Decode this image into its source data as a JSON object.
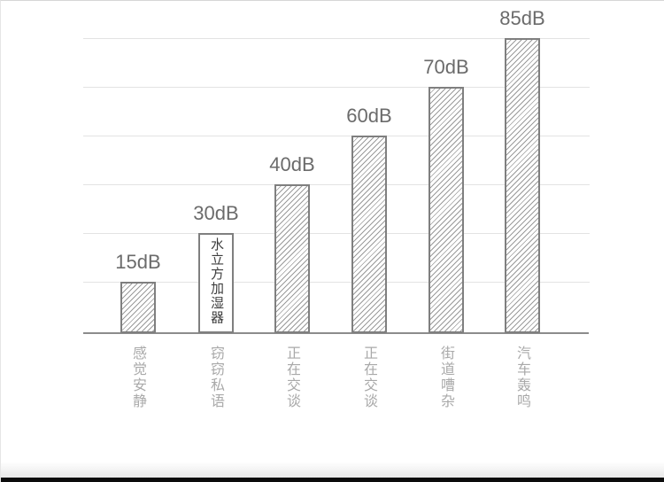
{
  "chart_data": {
    "type": "bar",
    "title": "",
    "xlabel": "",
    "ylabel": "",
    "unit": "dB",
    "categories": [
      "感觉安静",
      "窃窃私语",
      "正在交谈",
      "正在交谈",
      "街道嘈杂",
      "汽车轰鸣"
    ],
    "values": [
      15,
      30,
      40,
      60,
      70,
      85
    ],
    "value_labels": [
      "15dB",
      "30dB",
      "40dB",
      "60dB",
      "70dB",
      "85dB"
    ],
    "bar_fills": [
      "hatched",
      "plain",
      "hatched",
      "hatched",
      "hatched",
      "hatched"
    ],
    "annotations": [
      {
        "bar_index": 1,
        "text": "水立方加湿器"
      }
    ],
    "grid": true,
    "legend": false,
    "bar_style": "diagonal-hatch",
    "axis_baseline": true
  },
  "colors": {
    "grid": "#e3e3e3",
    "axis": "#8c8c8c",
    "bar_border": "#7f7f7f",
    "hatch": "#9a9a9a",
    "value_label": "#6b6b6b",
    "category_label": "#a9a9a9",
    "annotation_text": "#3d3d3d",
    "bottom_bar": "#0c0c0c",
    "background": "#ffffff"
  }
}
